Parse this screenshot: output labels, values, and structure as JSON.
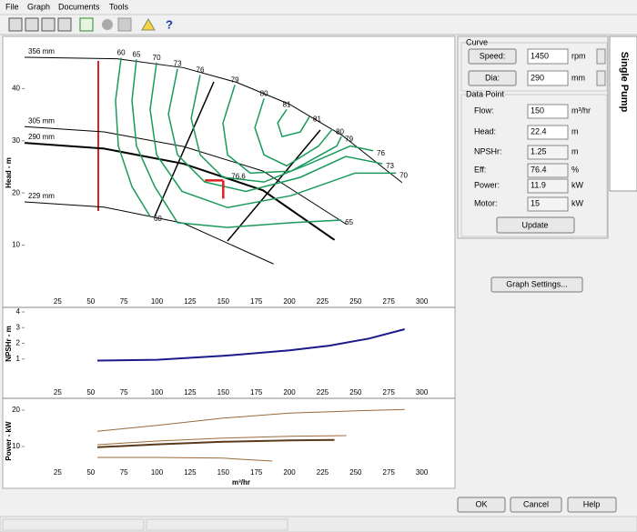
{
  "menu": [
    "File",
    "Graph",
    "Documents",
    "Tools"
  ],
  "graph": {
    "x_label": "m³/hr",
    "xlim": [
      0,
      325
    ],
    "xticks": [
      25,
      50,
      75,
      100,
      125,
      150,
      175,
      200,
      225,
      250,
      275,
      300
    ],
    "head": {
      "y_label": "Head - m",
      "ylim": [
        0,
        50
      ],
      "yticks": [
        10,
        20,
        30,
        40
      ],
      "operating_label": "76.6",
      "series": [
        {
          "name": "356 mm",
          "color": "#000000",
          "line_width": 1,
          "x": [
            0,
            70,
            120,
            160,
            200,
            240,
            285
          ],
          "values": [
            46,
            45.7,
            44,
            41.2,
            37,
            31,
            22
          ]
        },
        {
          "name": "305 mm",
          "color": "#000000",
          "line_width": 1,
          "x": [
            0,
            60,
            120,
            180,
            243
          ],
          "values": [
            32.7,
            31.7,
            28.9,
            24.2,
            14
          ]
        },
        {
          "name": "290 mm",
          "color": "#000000",
          "line_width": 2,
          "x": [
            0,
            60,
            120,
            180,
            234
          ],
          "values": [
            29.6,
            28.5,
            25.6,
            20.5,
            11
          ]
        },
        {
          "name": "229 mm",
          "color": "#000000",
          "line_width": 1,
          "x": [
            0,
            60,
            120,
            188
          ],
          "values": [
            18.3,
            17.3,
            14.2,
            6.4
          ]
        }
      ],
      "contour_color": "#1a9a5a",
      "contours": [
        {
          "label": "60",
          "x": [
            72.9,
            68.7,
            70.8,
            81.1,
            94.8
          ],
          "values": [
            45.9,
            37.7,
            29,
            21.2,
            15.5
          ]
        },
        {
          "label": "65",
          "x": [
            84.5,
            81.1,
            84.5,
            98.3,
            115.5,
            153.3,
            201.4,
            239.2
          ],
          "values": [
            45.6,
            37.7,
            29,
            21.2,
            14.3,
            13.4,
            14.3,
            14.8
          ]
        },
        {
          "label": "70",
          "x": [
            99.7,
            94.8,
            99.7,
            118.9,
            153.3,
            201.4,
            249.5,
            280.4
          ],
          "values": [
            45,
            36,
            27.3,
            20.3,
            17.2,
            19.5,
            23.8,
            23.8
          ]
        },
        {
          "label": "73",
          "x": [
            115.5,
            108.6,
            115.5,
            136.1,
            167,
            208.2,
            242.6,
            270.1
          ],
          "values": [
            43.8,
            35.1,
            27.3,
            22.1,
            20.3,
            23,
            27,
            25.6
          ]
        },
        {
          "label": "76",
          "x": [
            132.6,
            125.8,
            132.6,
            149.8,
            180.8,
            215.1,
            246,
            263.2
          ],
          "values": [
            42.6,
            34.3,
            27.3,
            23,
            22.1,
            25.6,
            29,
            28.1
          ]
        },
        {
          "label": "79",
          "x": [
            158.8,
            149.8,
            153.3,
            170.4,
            201.4,
            235.7,
            239.2
          ],
          "values": [
            40.7,
            33.4,
            27.3,
            23.8,
            24.2,
            29,
            30.8
          ]
        },
        {
          "label": "80",
          "x": [
            180.8,
            173.9,
            180.8,
            197.9,
            222,
            232.3
          ],
          "values": [
            38.1,
            32.5,
            27.3,
            25.2,
            29,
            32.2
          ]
        },
        {
          "label": "81",
          "x": [
            197.9,
            191.1,
            194.5,
            208.2,
            215.1
          ],
          "values": [
            36,
            33.4,
            30.8,
            31.7,
            34.6
          ]
        }
      ]
    },
    "npshr": {
      "y_label": "NPSHr - m",
      "ylim": [
        0,
        4
      ],
      "yticks": [
        1,
        2,
        3,
        4
      ],
      "series": [
        {
          "color": "#1a1a8c",
          "line_width": 2,
          "x": [
            55,
            100,
            150,
            200,
            230,
            260,
            287
          ],
          "values": [
            0.9,
            0.95,
            1.2,
            1.55,
            1.85,
            2.3,
            2.9
          ]
        }
      ]
    },
    "power": {
      "y_label": "Power - kW",
      "ylim": [
        0,
        23
      ],
      "yticks": [
        10,
        20
      ],
      "series": [
        {
          "color": "#9a6a3a",
          "line_width": 1,
          "x": [
            55,
            100,
            150,
            200,
            250,
            287
          ],
          "values": [
            14.2,
            15.8,
            17.8,
            19.2,
            19.8,
            20.2
          ]
        },
        {
          "color": "#9a6a3a",
          "line_width": 1,
          "x": [
            55,
            100,
            150,
            200,
            243
          ],
          "values": [
            10.5,
            11.5,
            12.3,
            12.8,
            13
          ]
        },
        {
          "color": "#5a3a1a",
          "line_width": 2,
          "x": [
            55,
            100,
            150,
            200,
            234
          ],
          "values": [
            9.8,
            10.6,
            11.3,
            11.7,
            11.8
          ]
        },
        {
          "color": "#9a6a3a",
          "line_width": 1,
          "x": [
            55,
            100,
            150,
            187
          ],
          "values": [
            7,
            7,
            6.8,
            6
          ]
        }
      ]
    }
  },
  "curve": {
    "title": "Curve",
    "speed_button": "Speed:",
    "speed": 1450,
    "speed_unit": "rpm",
    "dia_button": "Dia:",
    "dia": 290,
    "dia_unit": "mm"
  },
  "data_point": {
    "title": "Data Point",
    "rows": [
      {
        "label": "Flow:",
        "value": 150,
        "unit": "m³/hr"
      },
      {
        "label": "Head:",
        "value": 22.4,
        "unit": "m"
      },
      {
        "label": "NPSHr:",
        "value": 1.25,
        "unit": "m"
      },
      {
        "label": "Eff:",
        "value": 76.4,
        "unit": "%"
      },
      {
        "label": "Power:",
        "value": 11.9,
        "unit": "kW"
      },
      {
        "label": "Motor:",
        "value": 15,
        "unit": "kW"
      }
    ],
    "update": "Update"
  },
  "graph_settings": "Graph Settings...",
  "tab": "Single Pump",
  "buttons": [
    "OK",
    "Cancel",
    "Help"
  ]
}
